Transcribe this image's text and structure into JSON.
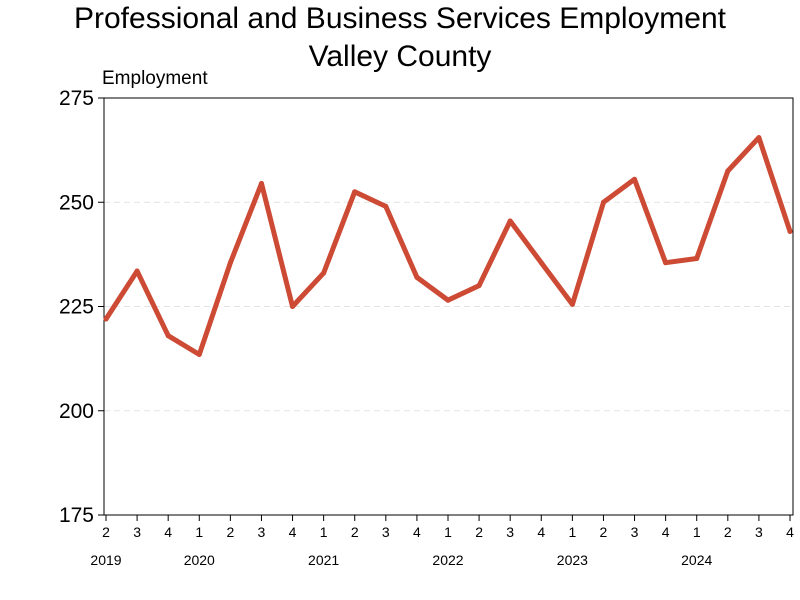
{
  "chart_data": {
    "type": "line",
    "title": "Professional and Business Services Employment",
    "subtitle": "Valley County",
    "ylabel": "Employment",
    "xlabel": "",
    "ylim": [
      175,
      275
    ],
    "yticks": [
      175,
      200,
      225,
      250,
      275
    ],
    "grid": "horizontal dashed",
    "line_color": "#CD4A35",
    "categories": [
      "2019 Q2",
      "2019 Q3",
      "2019 Q4",
      "2020 Q1",
      "2020 Q2",
      "2020 Q3",
      "2020 Q4",
      "2021 Q1",
      "2021 Q2",
      "2021 Q3",
      "2021 Q4",
      "2022 Q1",
      "2022 Q2",
      "2022 Q3",
      "2022 Q4",
      "2023 Q1",
      "2023 Q2",
      "2023 Q3",
      "2023 Q4",
      "2024 Q1",
      "2024 Q2",
      "2024 Q3",
      "2024 Q4"
    ],
    "quarter_labels": [
      "2",
      "3",
      "4",
      "1",
      "2",
      "3",
      "4",
      "1",
      "2",
      "3",
      "4",
      "1",
      "2",
      "3",
      "4",
      "1",
      "2",
      "3",
      "4",
      "1",
      "2",
      "3",
      "4"
    ],
    "year_labels": [
      {
        "label": "2019",
        "quarter_index": 0
      },
      {
        "label": "2020",
        "quarter_index": 3
      },
      {
        "label": "2021",
        "quarter_index": 7
      },
      {
        "label": "2022",
        "quarter_index": 11
      },
      {
        "label": "2023",
        "quarter_index": 15
      },
      {
        "label": "2024",
        "quarter_index": 19
      }
    ],
    "values": [
      222,
      233.5,
      218,
      213.5,
      235.5,
      254.5,
      225,
      233,
      252.5,
      249,
      232,
      226.5,
      230,
      245.5,
      235.5,
      225.5,
      250,
      255.5,
      235.5,
      236.5,
      257.5,
      265.5,
      243
    ]
  }
}
